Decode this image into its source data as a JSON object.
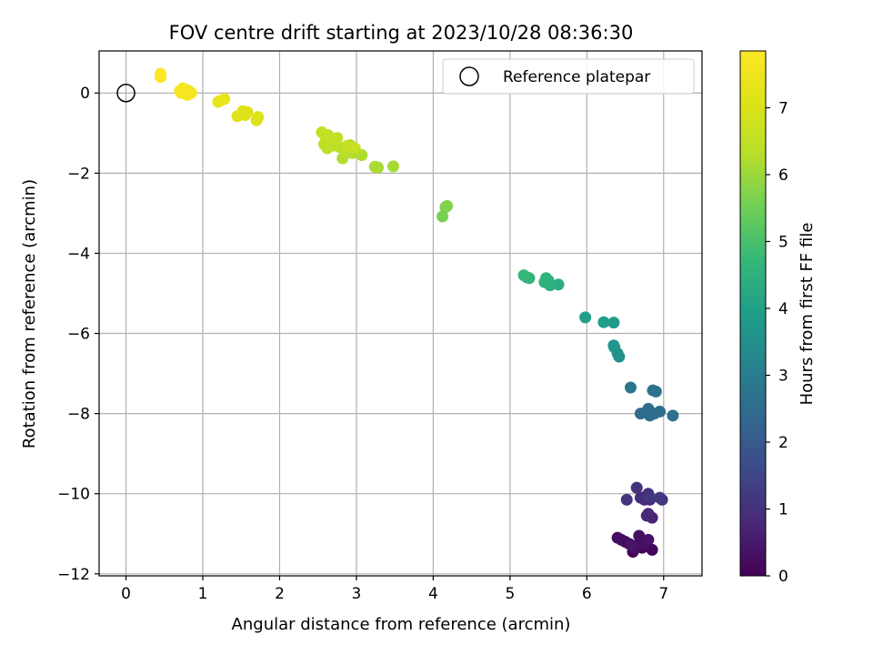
{
  "chart_data": {
    "type": "scatter",
    "title": "FOV centre drift starting at 2023/10/28 08:36:30",
    "xlabel": "Angular distance from reference (arcmin)",
    "ylabel": "Rotation from reference (arcmin)",
    "xlim": [
      -0.35,
      7.5
    ],
    "ylim": [
      -12.05,
      1.05
    ],
    "xticks": [
      0,
      1,
      2,
      3,
      4,
      5,
      6,
      7
    ],
    "yticks": [
      0,
      -2,
      -4,
      -6,
      -8,
      -10,
      -12
    ],
    "xtick_labels": [
      "0",
      "1",
      "2",
      "3",
      "4",
      "5",
      "6",
      "7"
    ],
    "ytick_labels": [
      "0",
      "−2",
      "−4",
      "−6",
      "−8",
      "−10",
      "−12"
    ],
    "grid": true,
    "colormap": "viridis",
    "colorbar": {
      "label": "Hours from first FF file",
      "range": [
        0,
        7.85
      ],
      "ticks": [
        0,
        1,
        2,
        3,
        4,
        5,
        6,
        7
      ],
      "tick_labels": [
        "0",
        "1",
        "2",
        "3",
        "4",
        "5",
        "6",
        "7"
      ]
    },
    "legend": {
      "entries": [
        "Reference platepar"
      ],
      "position": "upper right"
    },
    "reference_point": {
      "x": 0,
      "y": 0
    },
    "points": [
      {
        "x": 6.6,
        "y": -11.45,
        "h": 0.02
      },
      {
        "x": 6.72,
        "y": -11.35,
        "h": 0.05
      },
      {
        "x": 6.85,
        "y": -11.4,
        "h": 0.1
      },
      {
        "x": 6.65,
        "y": -11.3,
        "h": 0.12
      },
      {
        "x": 6.7,
        "y": -11.2,
        "h": 0.15
      },
      {
        "x": 6.5,
        "y": -11.2,
        "h": 0.18
      },
      {
        "x": 6.55,
        "y": -11.25,
        "h": 0.2
      },
      {
        "x": 6.45,
        "y": -11.15,
        "h": 0.22
      },
      {
        "x": 6.4,
        "y": -11.1,
        "h": 0.25
      },
      {
        "x": 6.75,
        "y": -11.25,
        "h": 0.28
      },
      {
        "x": 6.68,
        "y": -11.05,
        "h": 0.3
      },
      {
        "x": 6.62,
        "y": -11.35,
        "h": 0.33
      },
      {
        "x": 6.8,
        "y": -11.15,
        "h": 0.36
      },
      {
        "x": 6.58,
        "y": -11.28,
        "h": 0.4
      },
      {
        "x": 6.85,
        "y": -10.6,
        "h": 0.75
      },
      {
        "x": 6.78,
        "y": -10.55,
        "h": 0.78
      },
      {
        "x": 6.8,
        "y": -10.5,
        "h": 0.8
      },
      {
        "x": 6.75,
        "y": -10.15,
        "h": 0.85
      },
      {
        "x": 6.82,
        "y": -10.15,
        "h": 0.88
      },
      {
        "x": 6.7,
        "y": -10.1,
        "h": 0.92
      },
      {
        "x": 6.78,
        "y": -10.05,
        "h": 0.95
      },
      {
        "x": 6.8,
        "y": -10.0,
        "h": 0.98
      },
      {
        "x": 6.65,
        "y": -9.85,
        "h": 1.02
      },
      {
        "x": 6.52,
        "y": -10.15,
        "h": 1.05
      },
      {
        "x": 6.98,
        "y": -10.15,
        "h": 1.1
      },
      {
        "x": 6.95,
        "y": -10.1,
        "h": 1.12
      },
      {
        "x": 6.82,
        "y": -10.1,
        "h": 1.15
      },
      {
        "x": 6.7,
        "y": -8.0,
        "h": 2.45
      },
      {
        "x": 6.82,
        "y": -8.05,
        "h": 2.48
      },
      {
        "x": 6.88,
        "y": -8.0,
        "h": 2.52
      },
      {
        "x": 6.8,
        "y": -7.88,
        "h": 2.55
      },
      {
        "x": 6.95,
        "y": -7.95,
        "h": 2.58
      },
      {
        "x": 7.12,
        "y": -8.05,
        "h": 2.62
      },
      {
        "x": 6.9,
        "y": -7.45,
        "h": 2.7
      },
      {
        "x": 6.86,
        "y": -7.42,
        "h": 2.72
      },
      {
        "x": 6.57,
        "y": -7.35,
        "h": 2.78
      },
      {
        "x": 6.42,
        "y": -6.58,
        "h": 3.5
      },
      {
        "x": 6.4,
        "y": -6.5,
        "h": 3.55
      },
      {
        "x": 6.36,
        "y": -6.35,
        "h": 3.62
      },
      {
        "x": 6.35,
        "y": -6.3,
        "h": 3.65
      },
      {
        "x": 6.35,
        "y": -5.73,
        "h": 3.85
      },
      {
        "x": 6.22,
        "y": -5.72,
        "h": 3.9
      },
      {
        "x": 5.98,
        "y": -5.6,
        "h": 4.0
      },
      {
        "x": 5.63,
        "y": -4.78,
        "h": 4.4
      },
      {
        "x": 5.52,
        "y": -4.8,
        "h": 4.45
      },
      {
        "x": 5.45,
        "y": -4.72,
        "h": 4.5
      },
      {
        "x": 5.5,
        "y": -4.68,
        "h": 4.52
      },
      {
        "x": 5.47,
        "y": -4.62,
        "h": 4.55
      },
      {
        "x": 5.25,
        "y": -4.62,
        "h": 4.6
      },
      {
        "x": 5.22,
        "y": -4.6,
        "h": 4.65
      },
      {
        "x": 5.18,
        "y": -4.55,
        "h": 4.7
      },
      {
        "x": 4.12,
        "y": -3.08,
        "h": 5.6
      },
      {
        "x": 4.16,
        "y": -2.85,
        "h": 5.65
      },
      {
        "x": 4.18,
        "y": -2.82,
        "h": 5.7
      },
      {
        "x": 3.48,
        "y": -1.83,
        "h": 6.1
      },
      {
        "x": 3.28,
        "y": -1.86,
        "h": 6.12
      },
      {
        "x": 3.24,
        "y": -1.84,
        "h": 6.15
      },
      {
        "x": 3.07,
        "y": -1.55,
        "h": 6.2
      },
      {
        "x": 2.82,
        "y": -1.63,
        "h": 6.22
      },
      {
        "x": 2.95,
        "y": -1.5,
        "h": 6.25
      },
      {
        "x": 2.92,
        "y": -1.3,
        "h": 6.3
      },
      {
        "x": 2.85,
        "y": -1.45,
        "h": 6.32
      },
      {
        "x": 2.78,
        "y": -1.35,
        "h": 6.35
      },
      {
        "x": 2.72,
        "y": -1.25,
        "h": 6.38
      },
      {
        "x": 2.68,
        "y": -1.32,
        "h": 6.4
      },
      {
        "x": 2.62,
        "y": -1.38,
        "h": 6.42
      },
      {
        "x": 2.58,
        "y": -1.28,
        "h": 6.45
      },
      {
        "x": 2.6,
        "y": -1.2,
        "h": 6.48
      },
      {
        "x": 2.7,
        "y": -1.15,
        "h": 6.5
      },
      {
        "x": 2.75,
        "y": -1.12,
        "h": 6.52
      },
      {
        "x": 2.63,
        "y": -1.05,
        "h": 6.55
      },
      {
        "x": 2.55,
        "y": -0.98,
        "h": 6.58
      },
      {
        "x": 2.88,
        "y": -1.32,
        "h": 6.6
      },
      {
        "x": 2.98,
        "y": -1.38,
        "h": 6.62
      },
      {
        "x": 1.7,
        "y": -0.68,
        "h": 7.0
      },
      {
        "x": 1.72,
        "y": -0.6,
        "h": 7.02
      },
      {
        "x": 1.55,
        "y": -0.55,
        "h": 7.05
      },
      {
        "x": 1.58,
        "y": -0.48,
        "h": 7.08
      },
      {
        "x": 1.52,
        "y": -0.45,
        "h": 7.1
      },
      {
        "x": 1.45,
        "y": -0.58,
        "h": 7.12
      },
      {
        "x": 1.28,
        "y": -0.15,
        "h": 7.3
      },
      {
        "x": 1.2,
        "y": -0.22,
        "h": 7.32
      },
      {
        "x": 1.22,
        "y": -0.2,
        "h": 7.35
      },
      {
        "x": 0.82,
        "y": 0.05,
        "h": 7.55
      },
      {
        "x": 0.85,
        "y": 0.0,
        "h": 7.58
      },
      {
        "x": 0.8,
        "y": -0.05,
        "h": 7.6
      },
      {
        "x": 0.78,
        "y": 0.08,
        "h": 7.62
      },
      {
        "x": 0.72,
        "y": 0.0,
        "h": 7.65
      },
      {
        "x": 0.74,
        "y": 0.12,
        "h": 7.68
      },
      {
        "x": 0.7,
        "y": 0.05,
        "h": 7.7
      },
      {
        "x": 0.45,
        "y": 0.48,
        "h": 7.8
      },
      {
        "x": 0.45,
        "y": 0.4,
        "h": 7.82
      }
    ]
  }
}
